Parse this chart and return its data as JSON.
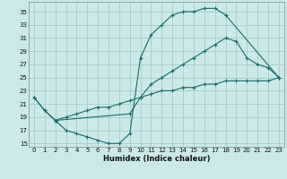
{
  "xlabel": "Humidex (Indice chaleur)",
  "bg_color": "#cce8e8",
  "grid_color": "#aad0d0",
  "line_color": "#1a6b6b",
  "xlim": [
    -0.5,
    23.5
  ],
  "ylim": [
    14.5,
    36.5
  ],
  "yticks": [
    15,
    17,
    19,
    21,
    23,
    25,
    27,
    29,
    31,
    33,
    35
  ],
  "xticks": [
    0,
    1,
    2,
    3,
    4,
    5,
    6,
    7,
    8,
    9,
    10,
    11,
    12,
    13,
    14,
    15,
    16,
    17,
    18,
    19,
    20,
    21,
    22,
    23
  ],
  "line1_x": [
    0,
    1,
    2,
    3,
    4,
    5,
    6,
    7,
    8,
    9,
    10,
    11,
    12,
    13,
    14,
    15,
    16,
    17,
    18,
    23
  ],
  "line1_y": [
    22,
    20,
    18.5,
    17,
    16.5,
    16,
    15.5,
    15,
    15,
    16.5,
    28,
    31.5,
    33,
    34.5,
    35,
    35,
    35.5,
    35.5,
    34.5,
    25
  ],
  "line2_x": [
    0,
    1,
    2,
    9,
    10,
    11,
    12,
    13,
    14,
    15,
    16,
    17,
    18,
    19,
    20,
    21,
    22,
    23
  ],
  "line2_y": [
    22,
    20,
    18.5,
    19.5,
    22,
    24,
    25,
    26,
    27,
    28,
    29,
    30,
    31,
    30.5,
    28,
    27,
    26.5,
    25
  ],
  "line3_x": [
    2,
    3,
    4,
    5,
    6,
    7,
    8,
    9,
    10,
    11,
    12,
    13,
    14,
    15,
    16,
    17,
    18,
    19,
    20,
    21,
    22,
    23
  ],
  "line3_y": [
    18.5,
    19,
    19.5,
    20,
    20.5,
    20.5,
    21,
    21.5,
    22,
    22.5,
    23,
    23,
    23.5,
    23.5,
    24,
    24,
    24.5,
    24.5,
    24.5,
    24.5,
    24.5,
    25
  ]
}
